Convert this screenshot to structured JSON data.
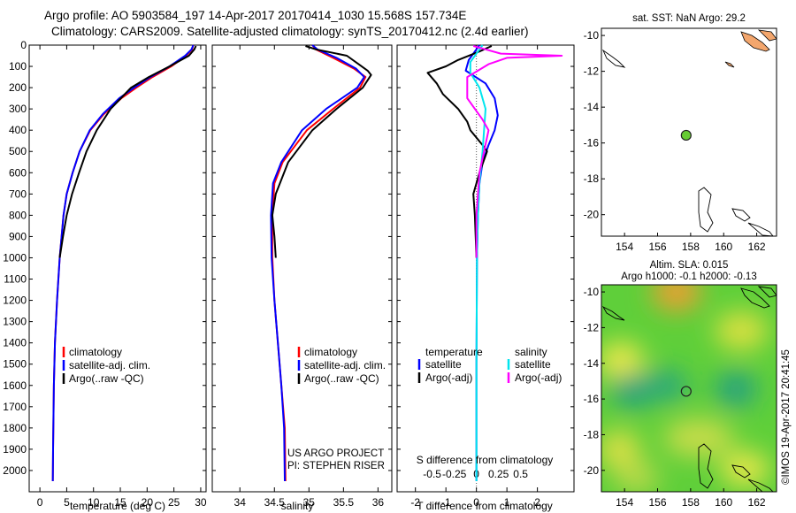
{
  "header": {
    "line1": "Argo profile: AO 5903584_197 14-Apr-2017 20170414_1030 15.568S 157.734E",
    "line2": "Climatology: CARS2009. Satellite-adjusted climatology: synTS_20170412.nc (2.4d earlier)"
  },
  "colors": {
    "clim": "#ff0000",
    "sat": "#0000ff",
    "argo": "#000000",
    "sat_s": "#00e5ee",
    "argo_s": "#ff00ff"
  },
  "chart_data": [
    {
      "type": "line",
      "xlabel": "temperature (deg C)",
      "xlim": [
        -2,
        31
      ],
      "ylim": [
        2100,
        0
      ],
      "xticks": [
        0,
        5,
        10,
        15,
        20,
        25,
        30
      ],
      "yticks": [
        0,
        100,
        200,
        300,
        400,
        500,
        600,
        700,
        800,
        900,
        1000,
        1100,
        1200,
        1300,
        1400,
        1500,
        1600,
        1700,
        1800,
        1900,
        2000
      ],
      "legend": [
        "climatology",
        "satellite-adj. clim.",
        "Argo(..raw -QC)"
      ],
      "series": [
        {
          "name": "climatology",
          "color": "#ff0000",
          "x": [
            28.6,
            28.4,
            27.3,
            24.5,
            21.0,
            18.0,
            15.2,
            11.9,
            9.4,
            7.4,
            6.1,
            5.0,
            4.4,
            3.7,
            3.2,
            2.8,
            2.6,
            2.45,
            2.4
          ],
          "y": [
            0,
            20,
            50,
            100,
            150,
            200,
            250,
            325,
            400,
            500,
            600,
            700,
            800,
            1000,
            1200,
            1400,
            1600,
            1900,
            2050
          ]
        },
        {
          "name": "satellite-adj. clim.",
          "color": "#0000ff",
          "x": [
            28.6,
            28.3,
            27.1,
            24.2,
            20.6,
            17.6,
            14.8,
            11.7,
            9.3,
            7.4,
            6.1,
            5.0,
            4.4,
            3.7,
            3.2,
            2.8,
            2.6,
            2.45,
            2.4
          ],
          "y": [
            0,
            20,
            50,
            100,
            150,
            200,
            250,
            325,
            400,
            500,
            600,
            700,
            800,
            1000,
            1200,
            1400,
            1600,
            1900,
            2050
          ]
        },
        {
          "name": "Argo(..raw -QC)",
          "color": "#000000",
          "x": [
            29.1,
            28.8,
            27.8,
            24.2,
            20.3,
            17.0,
            13.2,
            10.6,
            8.7,
            7.3,
            6.0,
            5.0,
            4.3,
            3.7
          ],
          "y": [
            4,
            20,
            50,
            100,
            150,
            200,
            300,
            400,
            500,
            600,
            700,
            800,
            900,
            1000
          ]
        }
      ]
    },
    {
      "type": "line",
      "xlabel": "salinity",
      "xlim": [
        33.6,
        36.2
      ],
      "ylim": [
        2100,
        0
      ],
      "xticks": [
        34,
        34.5,
        35,
        35.5,
        36
      ],
      "legend": [
        "climatology",
        "satellite-adj. clim.",
        "Argo(..raw -QC)"
      ],
      "annotations": [
        "US ARGO PROJECT",
        "PI: STEPHEN RISER"
      ],
      "series": [
        {
          "name": "climatology",
          "color": "#ff0000",
          "x": [
            35.05,
            35.1,
            35.35,
            35.65,
            35.82,
            35.74,
            35.35,
            34.97,
            34.62,
            34.5,
            34.47,
            34.47,
            34.5,
            34.55,
            34.6,
            34.65,
            34.66
          ],
          "y": [
            0,
            20,
            60,
            110,
            150,
            200,
            300,
            400,
            550,
            650,
            800,
            1000,
            1200,
            1400,
            1600,
            1800,
            2050
          ]
        },
        {
          "name": "satellite-adj. clim.",
          "color": "#0000ff",
          "x": [
            35.05,
            35.12,
            35.4,
            35.68,
            35.8,
            35.7,
            35.25,
            34.9,
            34.6,
            34.48,
            34.45,
            34.46,
            34.5,
            34.55,
            34.6,
            34.64,
            34.65
          ],
          "y": [
            0,
            20,
            60,
            110,
            150,
            200,
            300,
            400,
            550,
            650,
            800,
            1000,
            1200,
            1400,
            1600,
            1800,
            2050
          ]
        },
        {
          "name": "Argo(..raw -QC)",
          "color": "#000000",
          "x": [
            34.95,
            35.1,
            35.55,
            35.72,
            35.85,
            35.9,
            35.78,
            35.4,
            35.05,
            34.7,
            34.52,
            34.47,
            34.5,
            34.52
          ],
          "y": [
            4,
            20,
            50,
            90,
            120,
            140,
            200,
            300,
            400,
            550,
            700,
            800,
            900,
            1000
          ]
        }
      ]
    },
    {
      "type": "line",
      "xlabel": "T difference from climatology",
      "xlabel2": "S difference from climatology",
      "xlim": [
        -2.6,
        3.2
      ],
      "ylim": [
        2100,
        0
      ],
      "xticks": [
        -2,
        -1,
        0,
        1,
        2
      ],
      "xticks2": [
        -0.5,
        -0.25,
        0,
        0.25,
        0.5
      ],
      "legend_headers": [
        "temperature",
        "salinity"
      ],
      "legend": [
        "satellite",
        "Argo(-adj)",
        "satellite",
        "Argo(-adj)"
      ],
      "series": [
        {
          "name": "satellite",
          "color": "#0000ff",
          "x": [
            0.1,
            -0.05,
            -0.25,
            -0.35,
            0.3,
            0.6,
            0.7,
            0.6,
            0.4,
            0.2,
            0.1,
            0.05,
            0.02,
            0,
            0
          ],
          "y": [
            0,
            30,
            70,
            120,
            180,
            250,
            330,
            400,
            470,
            550,
            650,
            800,
            1000,
            1500,
            2050
          ]
        },
        {
          "name": "Argo(-adj)",
          "color": "#000000",
          "x": [
            0.5,
            0.1,
            -0.6,
            -1.0,
            -1.6,
            -1.3,
            -1.1,
            -0.6,
            -0.3,
            -0.2,
            0.2,
            0.35,
            0.1,
            -0.1,
            -0.05,
            0
          ],
          "y": [
            4,
            30,
            70,
            100,
            130,
            180,
            230,
            300,
            360,
            400,
            470,
            500,
            600,
            700,
            800,
            1000
          ]
        },
        {
          "name": "satellite (S)",
          "color": "#00e5ee",
          "x": [
            0.2,
            0.0,
            -0.2,
            -0.2,
            0.1,
            0.3,
            0.25,
            0.2,
            0.1,
            0.05,
            0.02,
            0,
            0
          ],
          "y": [
            0,
            40,
            80,
            130,
            200,
            300,
            400,
            500,
            650,
            800,
            1000,
            1500,
            2050
          ]
        },
        {
          "name": "Argo(-adj) (S)",
          "color": "#ff00ff",
          "x": [
            -0.1,
            0.3,
            0.8,
            2.8,
            1.0,
            0.4,
            -0.3,
            -0.3,
            0.2,
            0.4,
            0.25,
            0.1,
            0.0,
            0.0
          ],
          "y": [
            4,
            20,
            40,
            50,
            60,
            90,
            150,
            250,
            350,
            400,
            500,
            600,
            800,
            1000
          ]
        }
      ]
    },
    {
      "type": "scatter",
      "title": "sat. SST: NaN Argo: 29.2",
      "xlim": [
        152.6,
        163.2
      ],
      "ylim": [
        -21.2,
        -9.6
      ],
      "xticks": [
        154,
        156,
        158,
        160,
        162
      ],
      "yticks": [
        -10,
        -12,
        -14,
        -16,
        -18,
        -20
      ],
      "points": [
        {
          "x": 157.73,
          "y": -15.57,
          "color": "#66cc33"
        }
      ]
    },
    {
      "type": "heatmap",
      "title": "Altim. SLA: 0.015",
      "subtitle": "Argo h1000: -0.1 h2000: -0.13",
      "xlim": [
        152.6,
        163.2
      ],
      "ylim": [
        -21.2,
        -9.6
      ],
      "xticks": [
        154,
        156,
        158,
        160,
        162
      ],
      "yticks": [
        -10,
        -12,
        -14,
        -16,
        -18,
        -20
      ],
      "points": [
        {
          "x": 157.73,
          "y": -15.57
        }
      ]
    }
  ],
  "watermark": "©IMOS 19-Apr-2017 20:41:45"
}
